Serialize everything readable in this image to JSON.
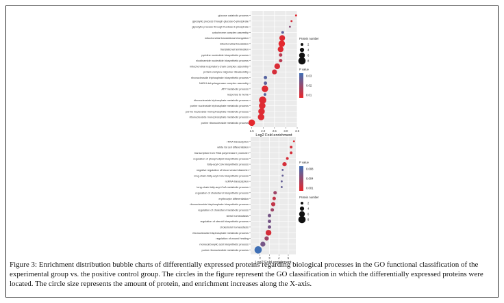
{
  "caption": {
    "label": "Figure 3:",
    "text": "Enrichment distribution bubble charts of differentially expressed proteins regarding biological processes in the GO functional classification of the experimental group vs. the positive control group. The circles in the figure represent the GO classification in which the differentially expressed proteins were located. The circle size represents the amount of protein, and enrichment increases along the X-axis."
  },
  "chart_data": [
    {
      "type": "scatter",
      "title": "",
      "xlabel": "Log2 Fold enrichment",
      "ylabel": "",
      "xlim": [
        1.45,
        3.5
      ],
      "xticks": [
        1.5,
        2.0,
        2.5,
        3.0,
        3.5
      ],
      "xtick_labels": [
        "1.5",
        "2.0",
        "2.5",
        "3.0",
        "3.5"
      ],
      "legend_size_title": "Protein number",
      "legend_size": [
        2,
        4,
        6,
        8
      ],
      "legend_color_title": "P value",
      "legend_color_ticks": [
        "0.03",
        "0.02",
        "0.01"
      ],
      "color_range": [
        0.0,
        0.035
      ],
      "colors": {
        "low": "#e8262a",
        "high": "#3f6fb5"
      },
      "terms": [
        {
          "name": "glucose catabolic process",
          "x": 3.45,
          "n": 1,
          "p": 0.002
        },
        {
          "name": "glycolytic process through glucose-6-phosphate",
          "x": 3.25,
          "n": 1,
          "p": 0.004
        },
        {
          "name": "glycolytic process through fructose-6-phosphate",
          "x": 3.18,
          "n": 1,
          "p": 0.02
        },
        {
          "name": "cytochrome complex assembly",
          "x": 2.86,
          "n": 2,
          "p": 0.028
        },
        {
          "name": "mitochondrial translational elongation",
          "x": 2.84,
          "n": 6,
          "p": 0.002
        },
        {
          "name": "mitochondrial translation",
          "x": 2.82,
          "n": 7,
          "p": 0.001
        },
        {
          "name": "translational termination",
          "x": 2.77,
          "n": 6,
          "p": 0.002
        },
        {
          "name": "pyridine nucleotide biosynthetic process",
          "x": 2.77,
          "n": 3,
          "p": 0.01
        },
        {
          "name": "nicotinamide nucleotide biosynthetic process",
          "x": 2.77,
          "n": 3,
          "p": 0.01
        },
        {
          "name": "mitochondrial respiratory chain complex assembly",
          "x": 2.62,
          "n": 6,
          "p": 0.003
        },
        {
          "name": "protein complex oligomer disassembly",
          "x": 2.5,
          "n": 5,
          "p": 0.004
        },
        {
          "name": "ribonucleoside triphosphate biosynthetic process",
          "x": 2.1,
          "n": 3,
          "p": 0.03
        },
        {
          "name": "NADH dehydrogenase complex assembly",
          "x": 2.1,
          "n": 3,
          "p": 0.028
        },
        {
          "name": "ATP metabolic process",
          "x": 2.08,
          "n": 7,
          "p": 0.002
        },
        {
          "name": "response to heme",
          "x": 2.08,
          "n": 2,
          "p": 0.03
        },
        {
          "name": "ribonucleoside triphosphate metabolic process",
          "x": 1.98,
          "n": 8,
          "p": 0.002
        },
        {
          "name": "purine nucleoside triphosphate metabolic process",
          "x": 1.96,
          "n": 7,
          "p": 0.002
        },
        {
          "name": "purine nucleoside monophosphate metabolic process",
          "x": 1.93,
          "n": 7,
          "p": 0.002
        },
        {
          "name": "ribonucleoside monophosphate metabolic process",
          "x": 1.91,
          "n": 7,
          "p": 0.002
        },
        {
          "name": "purine ribonucleoside metabolic process",
          "x": 1.5,
          "n": 7,
          "p": 0.001
        }
      ]
    },
    {
      "type": "scatter",
      "title": "",
      "xlabel": "Log2 Fold enrichment",
      "ylabel": "",
      "xlim": [
        1.0,
        5.8
      ],
      "xticks": [
        2,
        3,
        4,
        5
      ],
      "xtick_labels": [
        "2",
        "3",
        "4",
        "5"
      ],
      "legend_size_title": "Protein number",
      "legend_size": [
        2,
        4,
        6,
        8
      ],
      "legend_color_title": "P value",
      "legend_color_ticks": [
        "0.008",
        "0.004",
        "0.001"
      ],
      "color_range": [
        0.0,
        0.009
      ],
      "colors": {
        "low": "#e8262a",
        "high": "#3f6fb5"
      },
      "terms": [
        {
          "name": "rRNA transcription",
          "x": 5.6,
          "n": 1,
          "p": 0.0005
        },
        {
          "name": "white fat cell differentiation",
          "x": 5.3,
          "n": 2,
          "p": 0.001
        },
        {
          "name": "transcription from RNA polymerase I promoter",
          "x": 5.3,
          "n": 2,
          "p": 0.001
        },
        {
          "name": "regulation of phospholipid biosynthetic process",
          "x": 4.9,
          "n": 2,
          "p": 0.001
        },
        {
          "name": "fatty-acyl-CoA biosynthetic process",
          "x": 4.6,
          "n": 4,
          "p": 0.001
        },
        {
          "name": "negative regulation of blood vessel diameter",
          "x": 4.4,
          "n": 1,
          "p": 0.007
        },
        {
          "name": "long-chain fatty-acyl-CoA biosynthetic process",
          "x": 4.4,
          "n": 1,
          "p": 0.007
        },
        {
          "name": "ncRNA transcription",
          "x": 4.3,
          "n": 1,
          "p": 0.007
        },
        {
          "name": "long-chain fatty-acyl-CoA metabolic process",
          "x": 4.3,
          "n": 1,
          "p": 0.007
        },
        {
          "name": "regulation of cholesterol biosynthetic process",
          "x": 3.6,
          "n": 3,
          "p": 0.004
        },
        {
          "name": "erythrocyte differentiation",
          "x": 3.5,
          "n": 3,
          "p": 0.002
        },
        {
          "name": "ribonucleoside bisphosphate biosynthetic process",
          "x": 3.4,
          "n": 4,
          "p": 0.002
        },
        {
          "name": "regulation of cholesterol metabolic process",
          "x": 3.3,
          "n": 3,
          "p": 0.004
        },
        {
          "name": "sterol homeostasis",
          "x": 3.0,
          "n": 3,
          "p": 0.006
        },
        {
          "name": "regulation of steroid biosynthetic process",
          "x": 3.0,
          "n": 3,
          "p": 0.006
        },
        {
          "name": "cholesterol homeostasis",
          "x": 3.0,
          "n": 3,
          "p": 0.006
        },
        {
          "name": "ribonucleoside bisphosphate metabolic process",
          "x": 2.9,
          "n": 6,
          "p": 0.001
        },
        {
          "name": "regulation of wound healing",
          "x": 2.7,
          "n": 4,
          "p": 0.004
        },
        {
          "name": "monocarboxylic acid biosynthetic process",
          "x": 2.3,
          "n": 5,
          "p": 0.006
        },
        {
          "name": "purine ribonucleotide metabolic process",
          "x": 1.8,
          "n": 8,
          "p": 0.009
        }
      ]
    }
  ]
}
